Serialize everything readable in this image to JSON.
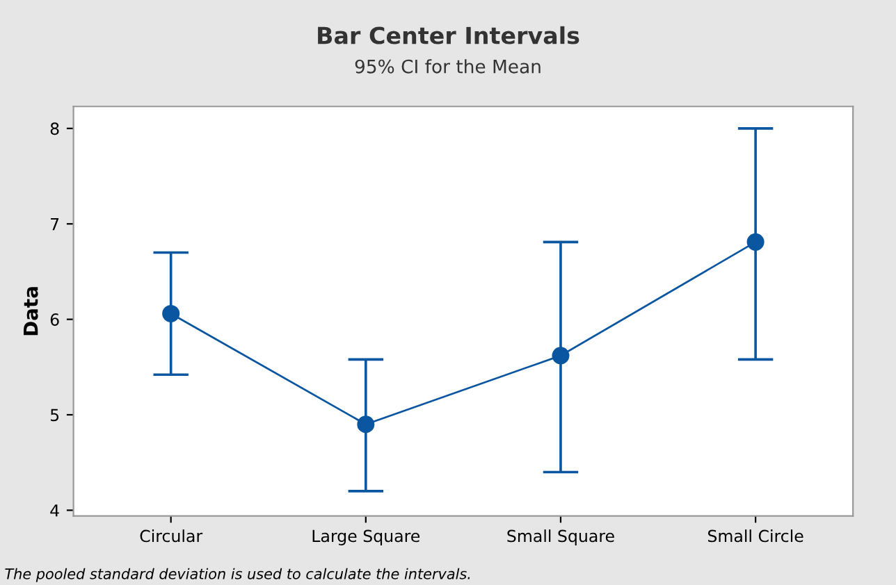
{
  "chart_data": {
    "type": "line",
    "title": "Bar Center Intervals",
    "subtitle": "95% CI for the Mean",
    "ylabel": "Data",
    "categories": [
      "Circular",
      "Large Square",
      "Small Square",
      "Small Circle"
    ],
    "series": [
      {
        "color": "#0a56a0",
        "values": [
          6.06,
          4.9,
          5.62,
          6.81
        ],
        "errors": [
          [
            5.42,
            6.7
          ],
          [
            4.2,
            5.58
          ],
          [
            4.4,
            6.81
          ],
          [
            5.58,
            8.0
          ]
        ]
      }
    ],
    "ylim": [
      3.94,
      8.23
    ],
    "yticks": [
      4,
      5,
      6,
      7,
      8
    ],
    "grid": false,
    "legend": false,
    "marker": "circle",
    "line_style": "solid",
    "annotations": [
      "The pooled standard deviation is used to calculate the intervals."
    ]
  }
}
